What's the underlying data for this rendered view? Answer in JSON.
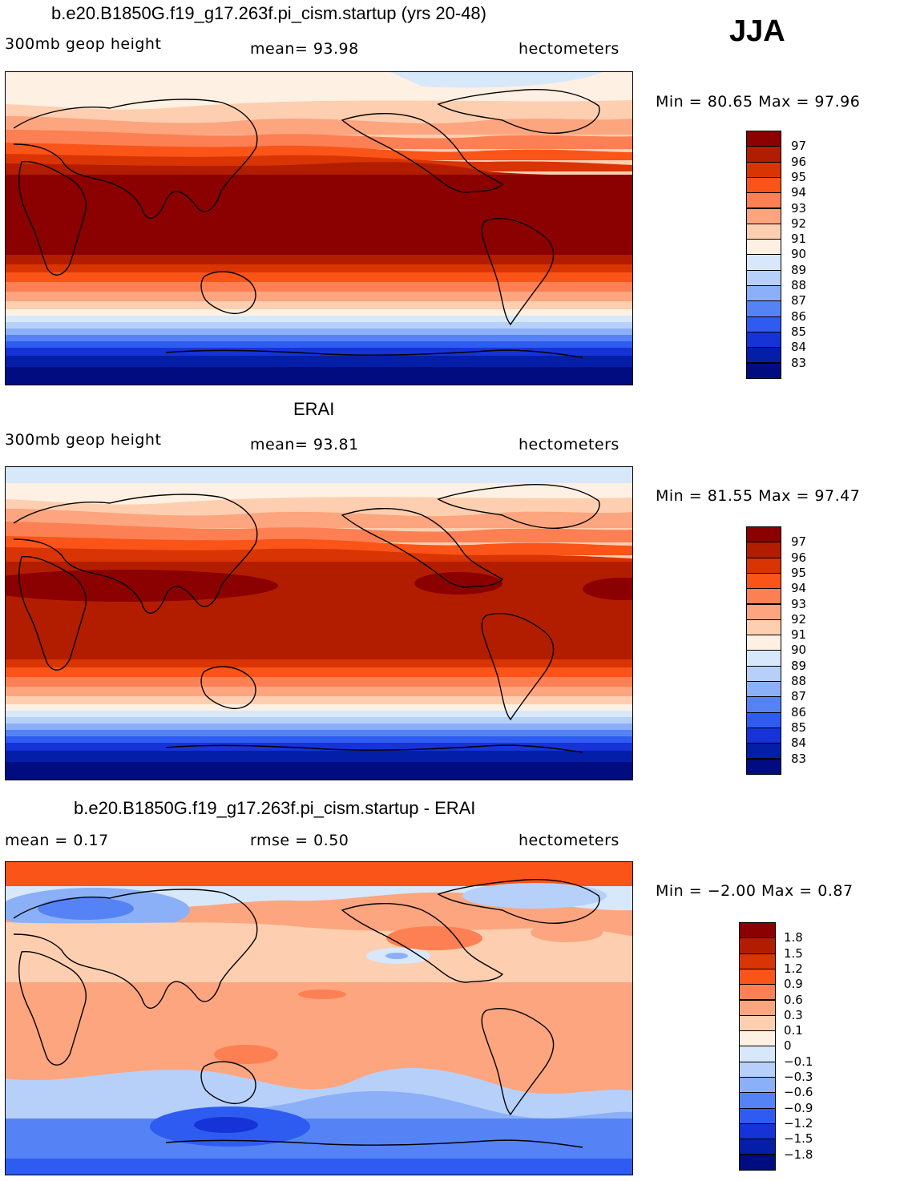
{
  "season": "JJA",
  "panels": [
    {
      "title": "b.e20.B1850G.f19_g17.263f.pi_cism.startup (yrs 20-48)",
      "left_label": "300mb geop height",
      "mid_label": "mean=   93.98",
      "units": "hectometers",
      "minmax": "Min =   80.65 Max =   97.96",
      "colorbar": {
        "colors": [
          "#8b0000",
          "#b21d00",
          "#d93404",
          "#fa5419",
          "#fc8053",
          "#fca57f",
          "#fdcfb0",
          "#fef0e2",
          "#d7e8fb",
          "#b6d0fa",
          "#8bb0f8",
          "#5583f5",
          "#2f5cf0",
          "#1533d6",
          "#041ea8",
          "#010c80"
        ],
        "labels": [
          "97",
          "96",
          "95",
          "94",
          "93",
          "92",
          "91",
          "90",
          "89",
          "88",
          "87",
          "86",
          "85",
          "84",
          "83"
        ]
      }
    },
    {
      "title": "ERAI",
      "left_label": "300mb geop height",
      "mid_label": "mean=   93.81",
      "units": "hectometers",
      "minmax": "Min =   81.55 Max =   97.47",
      "colorbar": {
        "colors": [
          "#8b0000",
          "#b21d00",
          "#d93404",
          "#fa5419",
          "#fc8053",
          "#fca57f",
          "#fdcfb0",
          "#fef0e2",
          "#d7e8fb",
          "#b6d0fa",
          "#8bb0f8",
          "#5583f5",
          "#2f5cf0",
          "#1533d6",
          "#041ea8",
          "#010c80"
        ],
        "labels": [
          "97",
          "96",
          "95",
          "94",
          "93",
          "92",
          "91",
          "90",
          "89",
          "88",
          "87",
          "86",
          "85",
          "84",
          "83"
        ]
      }
    },
    {
      "title": "b.e20.B1850G.f19_g17.263f.pi_cism.startup - ERAI",
      "left_label": "mean =     0.17",
      "mid_label": "rmse =     0.50",
      "units": "hectometers",
      "minmax": "Min =   −2.00 Max =     0.87",
      "colorbar": {
        "colors": [
          "#8b0000",
          "#b21d00",
          "#d93404",
          "#fa5419",
          "#fc8053",
          "#fca57f",
          "#fdcfb0",
          "#fef0e2",
          "#d7e8fb",
          "#b6d0fa",
          "#8bb0f8",
          "#5583f5",
          "#2f5cf0",
          "#1533d6",
          "#041ea8",
          "#010c80"
        ],
        "labels": [
          "1.8",
          "1.5",
          "1.2",
          "0.9",
          "0.6",
          "0.3",
          "0.1",
          "0",
          "−0.1",
          "−0.3",
          "−0.6",
          "−0.9",
          "−1.2",
          "−1.5",
          "−1.8"
        ]
      }
    }
  ]
}
